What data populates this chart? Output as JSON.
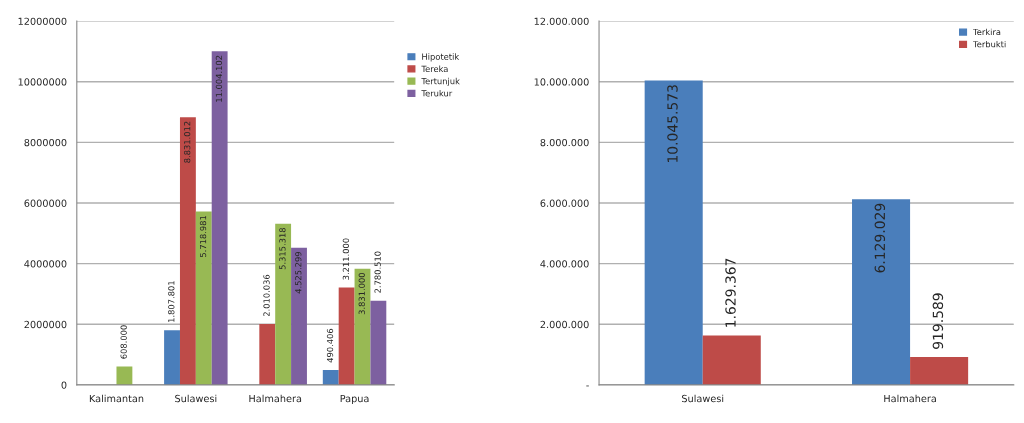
{
  "chart_data": [
    {
      "type": "bar",
      "categories": [
        "Kalimantan",
        "Sulawesi",
        "Halmahera",
        "Papua"
      ],
      "ylim": [
        0,
        12000000
      ],
      "yticks": [
        0,
        2000000,
        4000000,
        6000000,
        8000000,
        10000000,
        12000000
      ],
      "grid": "y",
      "legend": "right",
      "series": [
        {
          "name": "Hipotetik",
          "color": "#4a7ebb",
          "values": [
            null,
            1807801,
            null,
            490406
          ],
          "value_labels": [
            null,
            "1.807.801",
            null,
            "490.406"
          ]
        },
        {
          "name": "Tereka",
          "color": "#be4b48",
          "values": [
            null,
            8831012,
            2010036,
            3211000
          ],
          "value_labels": [
            null,
            "8.831.012",
            "2.010.036",
            "3.211.000"
          ]
        },
        {
          "name": "Tertunjuk",
          "color": "#98b954",
          "values": [
            608000,
            5718981,
            5315318,
            3831000
          ],
          "value_labels": [
            "608.000",
            "5.718.981",
            "5.315.318",
            "3.831.000"
          ]
        },
        {
          "name": "Terukur",
          "color": "#7d60a0",
          "values": [
            null,
            11004102,
            4525299,
            2780510
          ],
          "value_labels": [
            null,
            "11.004.102",
            "4.525.299",
            "2.780.510"
          ]
        }
      ]
    },
    {
      "type": "bar",
      "categories": [
        "Sulawesi",
        "Halmahera"
      ],
      "ylim": [
        0,
        12000000
      ],
      "yticks": [
        {
          "value": 0,
          "label": "-"
        },
        {
          "value": 2000000,
          "label": "2.000.000"
        },
        {
          "value": 4000000,
          "label": "4.000.000"
        },
        {
          "value": 6000000,
          "label": "6.000.000"
        },
        {
          "value": 8000000,
          "label": "8.000.000"
        },
        {
          "value": 10000000,
          "label": "10.000.000"
        },
        {
          "value": 12000000,
          "label": "12.000.000"
        }
      ],
      "grid": "y",
      "legend": "top right",
      "series": [
        {
          "name": "Terkira",
          "color": "#4a7ebb",
          "values": [
            10045573,
            6129029
          ],
          "value_labels": [
            "10.045.573",
            "6.129.029"
          ]
        },
        {
          "name": "Terbukti",
          "color": "#be4b48",
          "values": [
            1629367,
            919589
          ],
          "value_labels": [
            "1.629.367",
            "919.589"
          ]
        }
      ]
    }
  ]
}
